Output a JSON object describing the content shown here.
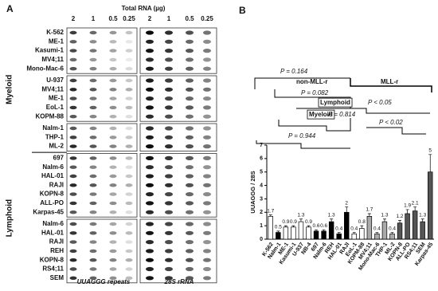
{
  "panel_a": {
    "label": "A",
    "title": "Total RNA (µg)",
    "columns": [
      "2",
      "1",
      "0.5",
      "0.25"
    ],
    "groups": [
      [
        "K-562",
        "ME-1",
        "Kasumi-1",
        "MV4;11",
        "Mono-Mac-6"
      ],
      [
        "U-937",
        "MV4;11",
        "ME-1",
        "EoL-1",
        "KOPM-88"
      ],
      [
        "Nalm-1",
        "THP-1",
        "ML-2"
      ],
      [
        "697",
        "Nalm-6",
        "HAL-01",
        "RAJI",
        "KOPN-8",
        "ALL-PO",
        "Karpas-45"
      ],
      [
        "Nalm-6",
        "HAL-01",
        "RAJI",
        "REH",
        "KOPN-8",
        "RS4;11",
        "SEM"
      ]
    ],
    "side_labels": [
      "Myeloid",
      "Lymphoid"
    ],
    "footers": [
      "UUAGGG repeats",
      "28S rRNA"
    ]
  },
  "chart_data": {
    "type": "bar",
    "panel_label": "B",
    "ylabel": "UUAGGG / 28S",
    "categories": [
      "K-562",
      "Nalm-1",
      "ME-1",
      "Kasumi-1",
      "U-937",
      "NB-4",
      "697",
      "Nalm-6",
      "REH",
      "HAL-01",
      "RAJI",
      "EoL-1",
      "KOPM-88",
      "MV4;11",
      "Mono-Mac-6",
      "THP-1",
      "ML-2",
      "KOPN-8",
      "ALL-PO",
      "RS4;11",
      "SEM",
      "Karpas-45"
    ],
    "values": [
      1.7,
      0.5,
      0.9,
      0.9,
      1.3,
      0.9,
      0.6,
      0.6,
      1.3,
      0.4,
      2.0,
      0.4,
      0.8,
      1.7,
      0.4,
      1.3,
      0.4,
      1.2,
      1.9,
      2.1,
      1.3,
      5.0
    ],
    "errors": [
      0.1,
      0.1,
      0.1,
      0.1,
      0.2,
      0.1,
      0.1,
      0.1,
      0.2,
      0.1,
      0.4,
      0.1,
      0.2,
      0.2,
      0.1,
      0.2,
      0.1,
      0.2,
      0.3,
      0.3,
      0.2,
      1.3
    ],
    "colors": [
      "#ffffff",
      "#000000",
      "#ffffff",
      "#ffffff",
      "#ffffff",
      "#ffffff",
      "#000000",
      "#000000",
      "#000000",
      "#000000",
      "#000000",
      "#ffffff",
      "#ffffff",
      "#aaaaaa",
      "#aaaaaa",
      "#aaaaaa",
      "#aaaaaa",
      "#555555",
      "#555555",
      "#555555",
      "#555555",
      "#555555"
    ],
    "ylim": [
      0,
      7
    ],
    "yticks": [
      0,
      1,
      2,
      3,
      4,
      5,
      6,
      7
    ],
    "annotations": [
      "P = 0.164",
      "non-MLL-r",
      "MLL-r",
      "P = 0.082",
      "Lymphoid",
      "P < 0.05",
      "Myeloid",
      "P = 0.814",
      "P < 0.02",
      "P = 0.944"
    ]
  }
}
